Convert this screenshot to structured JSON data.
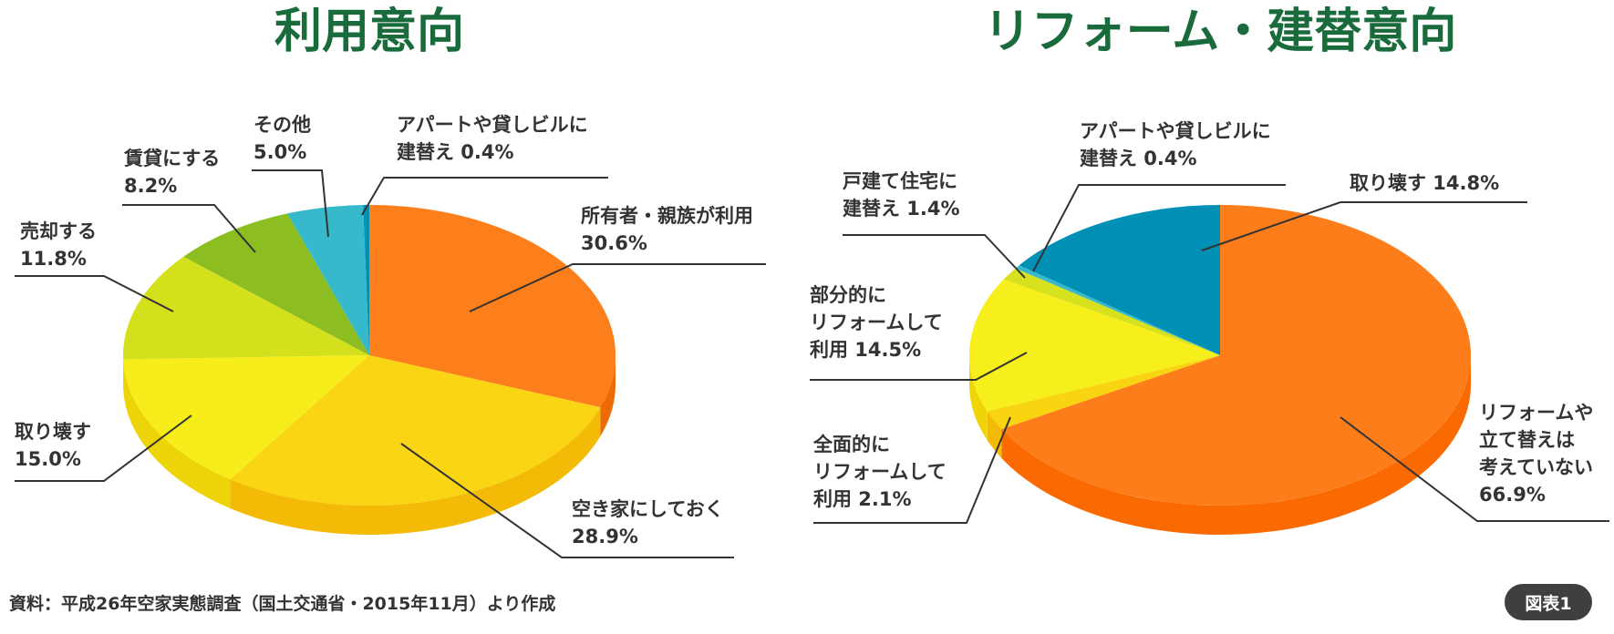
{
  "chart_data": [
    {
      "type": "pie",
      "title": "利用意向",
      "slices": [
        {
          "label_lines": [
            "所有者・親族が利用",
            "30.6%"
          ],
          "value": 30.6,
          "color": "#fd7f1b",
          "side": "#ed6b05"
        },
        {
          "label_lines": [
            "空き家にしておく",
            "28.9%"
          ],
          "value": 28.9,
          "color": "#f9d514",
          "side": "#f3bb06"
        },
        {
          "label_lines": [
            "取り壊す",
            "15.0%"
          ],
          "value": 15.0,
          "color": "#f7ed1a",
          "side": "#edd408"
        },
        {
          "label_lines": [
            "売却する",
            "11.8%"
          ],
          "value": 11.8,
          "color": "#d5e01c",
          "side": "#c6cf10"
        },
        {
          "label_lines": [
            "賃貸にする",
            "8.2%"
          ],
          "value": 8.2,
          "color": "#8cbd21",
          "side": "#7aa818"
        },
        {
          "label_lines": [
            "その他",
            "5.0%"
          ],
          "value": 5.0,
          "color": "#35b9cb",
          "side": "#29a3b5"
        },
        {
          "label_lines": [
            "アパートや貸しビルに",
            "建替え 0.4%"
          ],
          "value": 0.4,
          "color": "#0090b6",
          "side": "#007ea0"
        }
      ]
    },
    {
      "type": "pie",
      "title": "リフォーム・建替意向",
      "slices": [
        {
          "label_lines": [
            "リフォームや",
            "立て替えは",
            "考えていない",
            "66.9%"
          ],
          "value": 66.9,
          "color": "#fd7d1a",
          "side": "#fb6a00"
        },
        {
          "label_lines": [
            "全面的に",
            "リフォームして",
            "利用 2.1%"
          ],
          "value": 2.1,
          "color": "#f9d411",
          "side": "#f4bb05"
        },
        {
          "label_lines": [
            "部分的に",
            "リフォームして",
            "利用 14.5%"
          ],
          "value": 14.5,
          "color": "#f7ef1b",
          "side": "#efd508"
        },
        {
          "label_lines": [
            "戸建て住宅に",
            "建替え 1.4%"
          ],
          "value": 1.4,
          "color": "#d8e11d",
          "side": "#c8d010"
        },
        {
          "label_lines": [
            "アパートや貸しビルに",
            "建替え 0.4%"
          ],
          "value": 0.4,
          "color": "#35b9cb",
          "side": "#29a3b5"
        },
        {
          "label_lines": [
            "取り壊す 14.8%"
          ],
          "value": 14.8,
          "color": "#0090b6",
          "side": "#007ea0"
        }
      ]
    }
  ],
  "source_note": "資料：平成26年空家実態調査（国土交通省・2015年11月）より作成",
  "figure_badge": "図表1"
}
